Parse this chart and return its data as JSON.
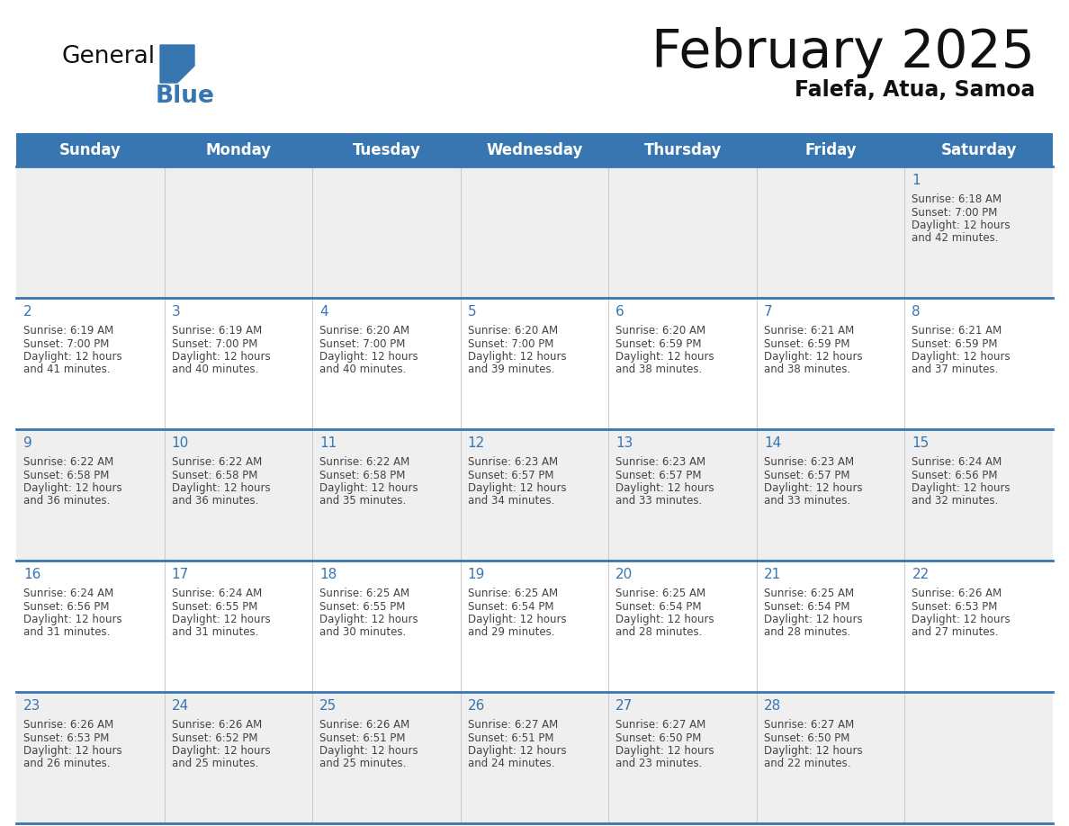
{
  "title": "February 2025",
  "subtitle": "Falefa, Atua, Samoa",
  "days_of_week": [
    "Sunday",
    "Monday",
    "Tuesday",
    "Wednesday",
    "Thursday",
    "Friday",
    "Saturday"
  ],
  "header_bg": "#3776b0",
  "header_text": "#ffffff",
  "bg_color": "#ffffff",
  "cell_bg_row0": "#efefef",
  "cell_bg_row1": "#ffffff",
  "cell_bg_row2": "#efefef",
  "cell_bg_row3": "#ffffff",
  "cell_bg_row4": "#efefef",
  "border_color": "#3776b0",
  "day_number_color": "#3776b0",
  "cell_text_color": "#444444",
  "logo_general_color": "#111111",
  "logo_blue_color": "#3776b0",
  "title_color": "#111111",
  "subtitle_color": "#111111",
  "calendar_data": [
    [
      null,
      null,
      null,
      null,
      null,
      null,
      {
        "day": 1,
        "sunrise": "6:18 AM",
        "sunset": "7:00 PM",
        "daylight_line1": "12 hours",
        "daylight_line2": "and 42 minutes."
      }
    ],
    [
      {
        "day": 2,
        "sunrise": "6:19 AM",
        "sunset": "7:00 PM",
        "daylight_line1": "12 hours",
        "daylight_line2": "and 41 minutes."
      },
      {
        "day": 3,
        "sunrise": "6:19 AM",
        "sunset": "7:00 PM",
        "daylight_line1": "12 hours",
        "daylight_line2": "and 40 minutes."
      },
      {
        "day": 4,
        "sunrise": "6:20 AM",
        "sunset": "7:00 PM",
        "daylight_line1": "12 hours",
        "daylight_line2": "and 40 minutes."
      },
      {
        "day": 5,
        "sunrise": "6:20 AM",
        "sunset": "7:00 PM",
        "daylight_line1": "12 hours",
        "daylight_line2": "and 39 minutes."
      },
      {
        "day": 6,
        "sunrise": "6:20 AM",
        "sunset": "6:59 PM",
        "daylight_line1": "12 hours",
        "daylight_line2": "and 38 minutes."
      },
      {
        "day": 7,
        "sunrise": "6:21 AM",
        "sunset": "6:59 PM",
        "daylight_line1": "12 hours",
        "daylight_line2": "and 38 minutes."
      },
      {
        "day": 8,
        "sunrise": "6:21 AM",
        "sunset": "6:59 PM",
        "daylight_line1": "12 hours",
        "daylight_line2": "and 37 minutes."
      }
    ],
    [
      {
        "day": 9,
        "sunrise": "6:22 AM",
        "sunset": "6:58 PM",
        "daylight_line1": "12 hours",
        "daylight_line2": "and 36 minutes."
      },
      {
        "day": 10,
        "sunrise": "6:22 AM",
        "sunset": "6:58 PM",
        "daylight_line1": "12 hours",
        "daylight_line2": "and 36 minutes."
      },
      {
        "day": 11,
        "sunrise": "6:22 AM",
        "sunset": "6:58 PM",
        "daylight_line1": "12 hours",
        "daylight_line2": "and 35 minutes."
      },
      {
        "day": 12,
        "sunrise": "6:23 AM",
        "sunset": "6:57 PM",
        "daylight_line1": "12 hours",
        "daylight_line2": "and 34 minutes."
      },
      {
        "day": 13,
        "sunrise": "6:23 AM",
        "sunset": "6:57 PM",
        "daylight_line1": "12 hours",
        "daylight_line2": "and 33 minutes."
      },
      {
        "day": 14,
        "sunrise": "6:23 AM",
        "sunset": "6:57 PM",
        "daylight_line1": "12 hours",
        "daylight_line2": "and 33 minutes."
      },
      {
        "day": 15,
        "sunrise": "6:24 AM",
        "sunset": "6:56 PM",
        "daylight_line1": "12 hours",
        "daylight_line2": "and 32 minutes."
      }
    ],
    [
      {
        "day": 16,
        "sunrise": "6:24 AM",
        "sunset": "6:56 PM",
        "daylight_line1": "12 hours",
        "daylight_line2": "and 31 minutes."
      },
      {
        "day": 17,
        "sunrise": "6:24 AM",
        "sunset": "6:55 PM",
        "daylight_line1": "12 hours",
        "daylight_line2": "and 31 minutes."
      },
      {
        "day": 18,
        "sunrise": "6:25 AM",
        "sunset": "6:55 PM",
        "daylight_line1": "12 hours",
        "daylight_line2": "and 30 minutes."
      },
      {
        "day": 19,
        "sunrise": "6:25 AM",
        "sunset": "6:54 PM",
        "daylight_line1": "12 hours",
        "daylight_line2": "and 29 minutes."
      },
      {
        "day": 20,
        "sunrise": "6:25 AM",
        "sunset": "6:54 PM",
        "daylight_line1": "12 hours",
        "daylight_line2": "and 28 minutes."
      },
      {
        "day": 21,
        "sunrise": "6:25 AM",
        "sunset": "6:54 PM",
        "daylight_line1": "12 hours",
        "daylight_line2": "and 28 minutes."
      },
      {
        "day": 22,
        "sunrise": "6:26 AM",
        "sunset": "6:53 PM",
        "daylight_line1": "12 hours",
        "daylight_line2": "and 27 minutes."
      }
    ],
    [
      {
        "day": 23,
        "sunrise": "6:26 AM",
        "sunset": "6:53 PM",
        "daylight_line1": "12 hours",
        "daylight_line2": "and 26 minutes."
      },
      {
        "day": 24,
        "sunrise": "6:26 AM",
        "sunset": "6:52 PM",
        "daylight_line1": "12 hours",
        "daylight_line2": "and 25 minutes."
      },
      {
        "day": 25,
        "sunrise": "6:26 AM",
        "sunset": "6:51 PM",
        "daylight_line1": "12 hours",
        "daylight_line2": "and 25 minutes."
      },
      {
        "day": 26,
        "sunrise": "6:27 AM",
        "sunset": "6:51 PM",
        "daylight_line1": "12 hours",
        "daylight_line2": "and 24 minutes."
      },
      {
        "day": 27,
        "sunrise": "6:27 AM",
        "sunset": "6:50 PM",
        "daylight_line1": "12 hours",
        "daylight_line2": "and 23 minutes."
      },
      {
        "day": 28,
        "sunrise": "6:27 AM",
        "sunset": "6:50 PM",
        "daylight_line1": "12 hours",
        "daylight_line2": "and 22 minutes."
      },
      null
    ]
  ]
}
